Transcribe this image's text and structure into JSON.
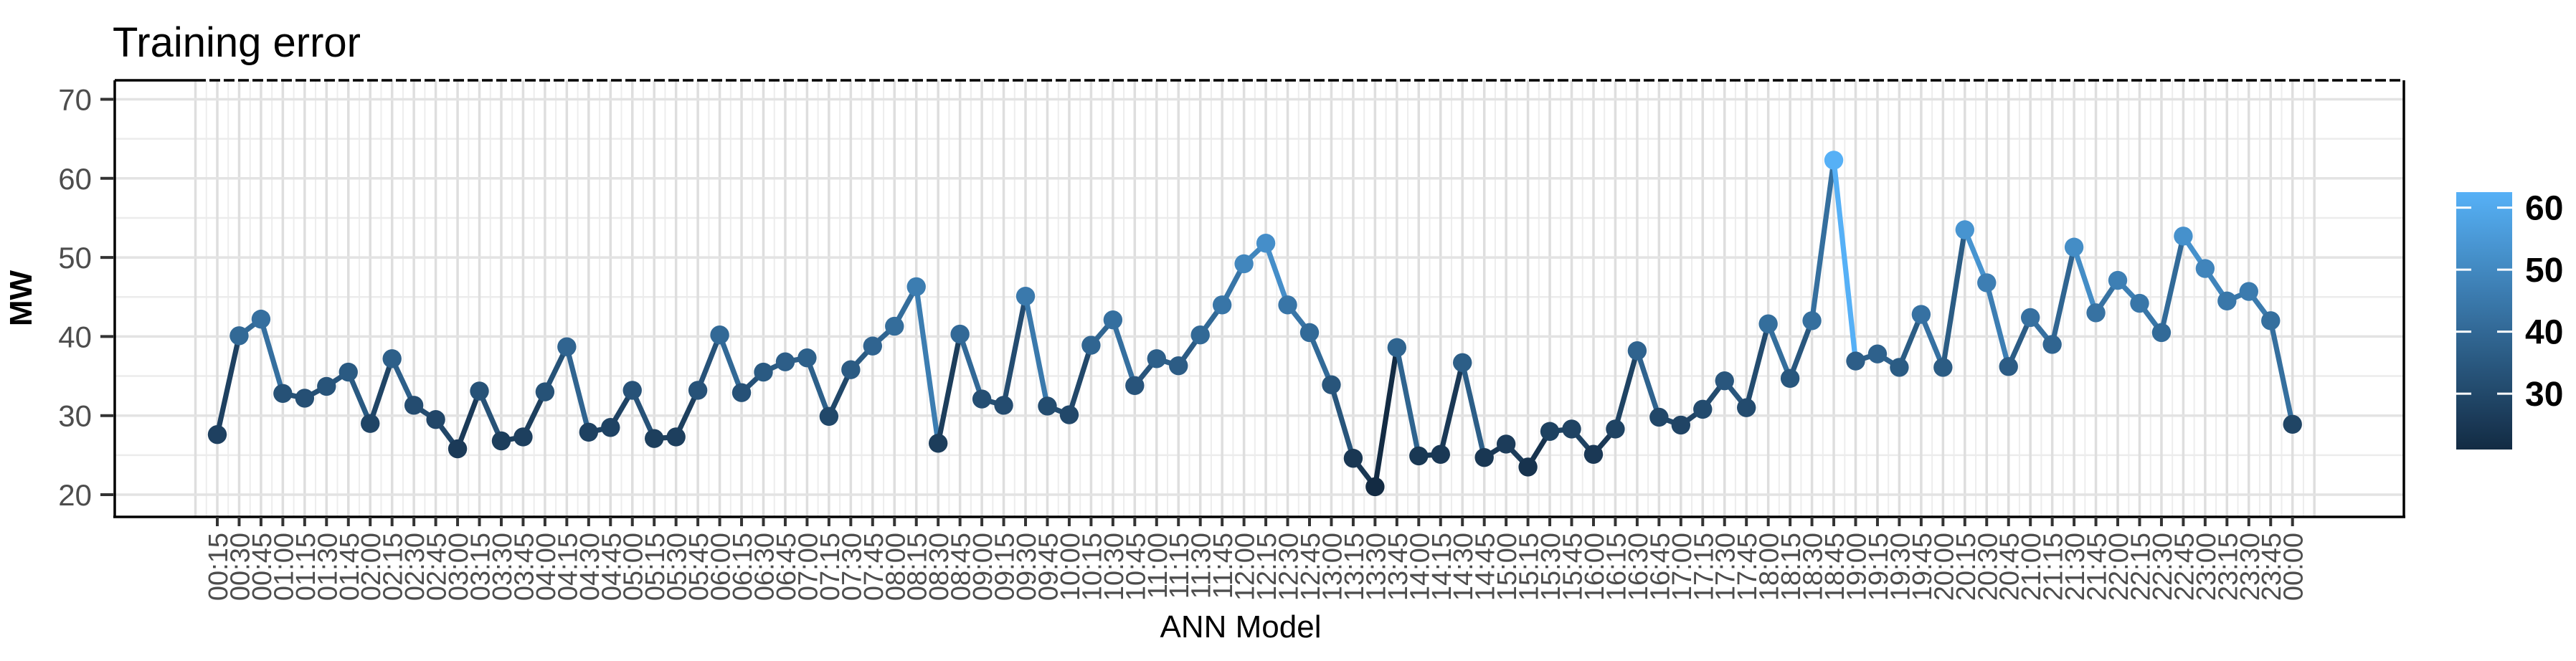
{
  "chart_data": {
    "type": "line",
    "title": "Training error",
    "xlabel": "ANN Model",
    "ylabel": "MW",
    "x_labels": [
      "00:15",
      "00:30",
      "00:45",
      "01:00",
      "01:15",
      "01:30",
      "01:45",
      "02:00",
      "02:15",
      "02:30",
      "02:45",
      "03:00",
      "03:15",
      "03:30",
      "03:45",
      "04:00",
      "04:15",
      "04:30",
      "04:45",
      "05:00",
      "05:15",
      "05:30",
      "05:45",
      "06:00",
      "06:15",
      "06:30",
      "06:45",
      "07:00",
      "07:15",
      "07:30",
      "07:45",
      "08:00",
      "08:15",
      "08:30",
      "08:45",
      "09:00",
      "09:15",
      "09:30",
      "09:45",
      "10:00",
      "10:15",
      "10:30",
      "10:45",
      "11:00",
      "11:15",
      "11:30",
      "11:45",
      "12:00",
      "12:15",
      "12:30",
      "12:45",
      "13:00",
      "13:15",
      "13:30",
      "13:45",
      "14:00",
      "14:15",
      "14:30",
      "14:45",
      "15:00",
      "15:15",
      "15:30",
      "15:45",
      "16:00",
      "16:15",
      "16:30",
      "16:45",
      "17:00",
      "17:15",
      "17:30",
      "17:45",
      "18:00",
      "18:15",
      "18:30",
      "18:45",
      "19:00",
      "19:15",
      "19:30",
      "19:45",
      "20:00",
      "20:15",
      "20:30",
      "20:45",
      "21:00",
      "21:15",
      "21:30",
      "21:45",
      "22:00",
      "22:15",
      "22:30",
      "22:45",
      "23:00",
      "23:15",
      "23:30",
      "23:45",
      "00:00"
    ],
    "values": [
      27.6,
      40.1,
      42.2,
      32.8,
      32.2,
      33.7,
      35.5,
      29.0,
      37.2,
      31.3,
      29.5,
      25.8,
      33.1,
      26.8,
      27.3,
      33.0,
      38.7,
      27.9,
      28.5,
      33.2,
      27.1,
      27.3,
      33.2,
      40.2,
      32.9,
      35.5,
      36.8,
      37.3,
      29.9,
      35.8,
      38.8,
      41.3,
      46.3,
      26.5,
      40.3,
      32.1,
      31.3,
      45.1,
      31.2,
      30.1,
      38.9,
      42.1,
      33.8,
      37.2,
      36.3,
      40.2,
      44.0,
      49.2,
      51.8,
      44.0,
      40.5,
      33.9,
      24.6,
      21.0,
      38.6,
      24.9,
      25.1,
      36.7,
      24.7,
      26.4,
      23.5,
      28.0,
      28.3,
      25.1,
      28.3,
      38.2,
      29.8,
      28.8,
      30.8,
      34.4,
      31.0,
      41.6,
      34.7,
      42.0,
      62.3,
      36.9,
      37.8,
      36.1,
      42.8,
      36.1,
      53.5,
      46.8,
      36.2,
      42.4,
      39.0,
      51.3,
      43.0,
      47.1,
      44.2,
      40.5,
      52.7,
      48.6,
      44.5,
      45.7,
      42.0,
      28.9
    ],
    "y_ticks": [
      70,
      60,
      50,
      40,
      30,
      20
    ],
    "y_minor_ticks": [
      65,
      55,
      45,
      35,
      25
    ],
    "ylim": [
      17.2,
      72.4
    ],
    "grid": true,
    "dashed_top_line": true,
    "legend": {
      "position": "right",
      "orientation": "vertical-colorbar",
      "tick_labels": [
        60,
        50,
        40,
        30
      ]
    },
    "color_scale": {
      "low": "#132B43",
      "high": "#56B1F7",
      "domain": [
        21.0,
        62.5
      ]
    },
    "style_colors": {
      "grid_major": "#dedede",
      "grid_minor": "#ededed",
      "axis_text": "#4d4d4d",
      "axis_line": "#000000",
      "title_text": "#000000"
    }
  }
}
